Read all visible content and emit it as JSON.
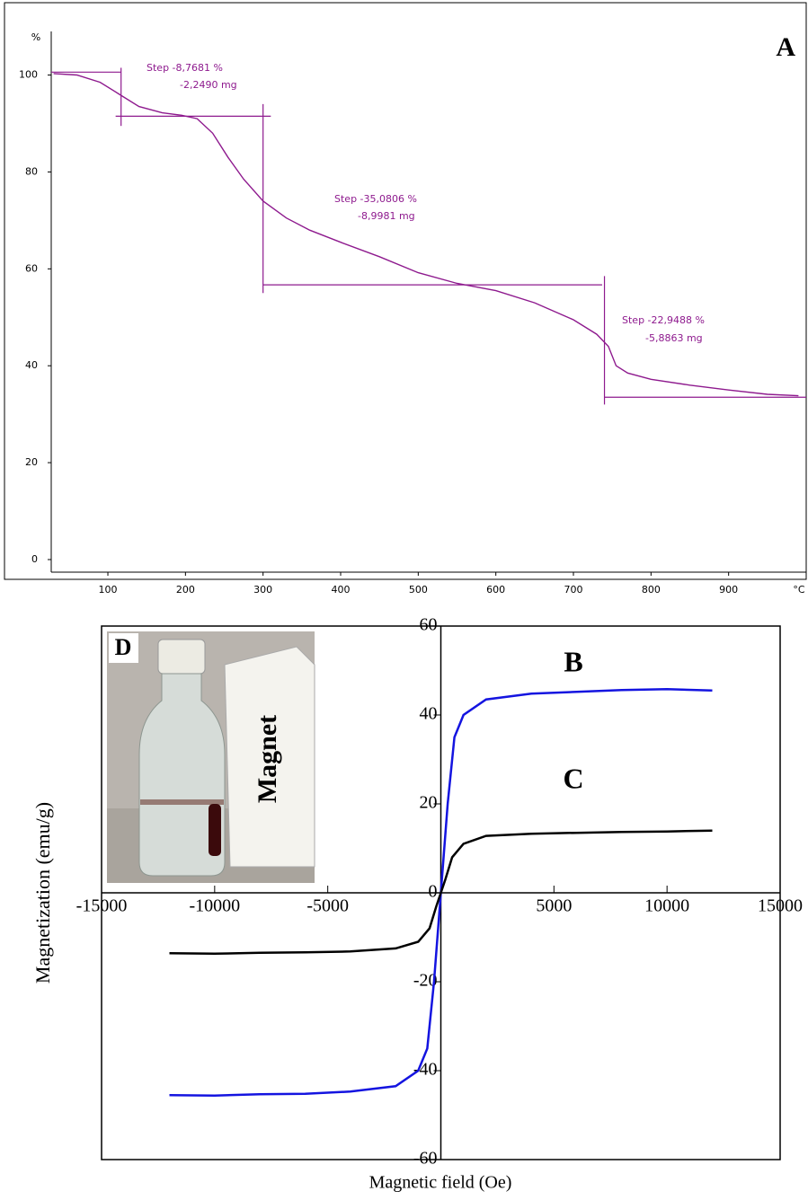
{
  "chart_data": [
    {
      "type": "line",
      "panel_label": "A",
      "y_unit": "%",
      "x_unit": "°C",
      "x": [
        30,
        60,
        90,
        115,
        140,
        170,
        195,
        215,
        235,
        255,
        275,
        300,
        330,
        360,
        400,
        450,
        500,
        550,
        600,
        650,
        700,
        730,
        745,
        755,
        770,
        800,
        850,
        900,
        950,
        990
      ],
      "series": [
        {
          "color": "#8e1a8e",
          "values": [
            100.3,
            100,
            98.5,
            96,
            93.5,
            92.2,
            91.7,
            91,
            88,
            83,
            78.5,
            74,
            70.5,
            68,
            65.5,
            62.5,
            59.2,
            57,
            55.5,
            53,
            49.5,
            46.5,
            44,
            40,
            38.5,
            37.2,
            36,
            35,
            34.1,
            33.8
          ]
        }
      ],
      "step_lines": [
        {
          "x": [
            27,
            117
          ],
          "y": [
            100.6,
            100.6
          ]
        },
        {
          "x": [
            117,
            117
          ],
          "y": [
            89.5,
            101.5
          ]
        },
        {
          "x": [
            110,
            310
          ],
          "y": [
            91.5,
            91.5
          ]
        },
        {
          "x": [
            300,
            300
          ],
          "y": [
            55,
            94
          ]
        },
        {
          "x": [
            300,
            737
          ],
          "y": [
            56.7,
            56.7
          ]
        },
        {
          "x": [
            740,
            740
          ],
          "y": [
            32,
            58.5
          ]
        },
        {
          "x": [
            740,
            1000
          ],
          "y": [
            33.5,
            33.5
          ]
        }
      ],
      "annotations": [
        {
          "lines": [
            "Step  -8,7681 %",
            "-2,2490 mg"
          ]
        },
        {
          "lines": [
            "Step  -35,0806 %",
            "-8,9981 mg"
          ]
        },
        {
          "lines": [
            "Step  -22,9488 %",
            "-5,8863 mg"
          ]
        }
      ],
      "xlim": [
        27,
        1000
      ],
      "xticks": [
        100,
        200,
        300,
        400,
        500,
        600,
        700,
        800,
        900
      ],
      "ylim": [
        -2.6,
        109
      ],
      "yticks": [
        0,
        20,
        40,
        60,
        80,
        100
      ]
    },
    {
      "type": "line",
      "x_label": "Magnetic field (Oe)",
      "y_label": "Magnetization (emu/g)",
      "series": [
        {
          "name": "B",
          "color": "#1414e0",
          "x": [
            -12000,
            -10000,
            -8000,
            -6000,
            -4000,
            -2000,
            -1000,
            -600,
            -300,
            0,
            300,
            600,
            1000,
            2000,
            4000,
            6000,
            8000,
            10000,
            12000
          ],
          "values": [
            -45.5,
            -45.6,
            -45.3,
            -45.2,
            -44.7,
            -43.5,
            -40,
            -35,
            -20,
            0,
            20,
            35,
            40,
            43.5,
            44.8,
            45.2,
            45.6,
            45.8,
            45.5
          ]
        },
        {
          "name": "C",
          "color": "#000000",
          "x": [
            -12000,
            -10000,
            -8000,
            -6000,
            -4000,
            -2000,
            -1000,
            -500,
            -200,
            0,
            200,
            500,
            1000,
            2000,
            4000,
            6000,
            8000,
            10000,
            12000
          ],
          "values": [
            -13.6,
            -13.7,
            -13.5,
            -13.4,
            -13.2,
            -12.5,
            -11,
            -8,
            -3,
            0,
            3,
            8,
            11,
            12.8,
            13.3,
            13.5,
            13.7,
            13.8,
            14
          ]
        }
      ],
      "inset": {
        "label": "D",
        "text": "Magnet"
      },
      "xlim": [
        -15000,
        15000
      ],
      "xticks": [
        -15000,
        -10000,
        -5000,
        5000,
        10000,
        15000
      ],
      "ylim": [
        -60,
        60
      ],
      "yticks": [
        -60,
        -40,
        -20,
        0,
        20,
        40,
        60
      ]
    }
  ]
}
